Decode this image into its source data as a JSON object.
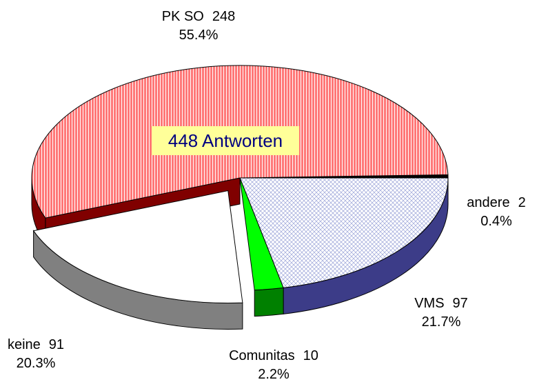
{
  "chart_data": {
    "type": "pie3d",
    "categories": [
      "PK SO",
      "andere",
      "VMS",
      "Comunitas",
      "keine"
    ],
    "values": [
      248,
      2,
      97,
      10,
      91
    ],
    "percentages": [
      55.4,
      0.4,
      21.7,
      2.2,
      20.3
    ],
    "percentage_labels": [
      "55.4%",
      "0.4%",
      "21.7%",
      "2.2%",
      "20.3%"
    ],
    "colors": [
      "#ff6666",
      "#000000",
      "#e4e8f8",
      "#00ff00",
      "#ffffff"
    ],
    "side_colors": [
      "#800000",
      "#000000",
      "#3c3c88",
      "#008000",
      "#808080"
    ],
    "exploded": [
      false,
      false,
      false,
      false,
      true
    ],
    "annotation": "448 Antworten"
  }
}
